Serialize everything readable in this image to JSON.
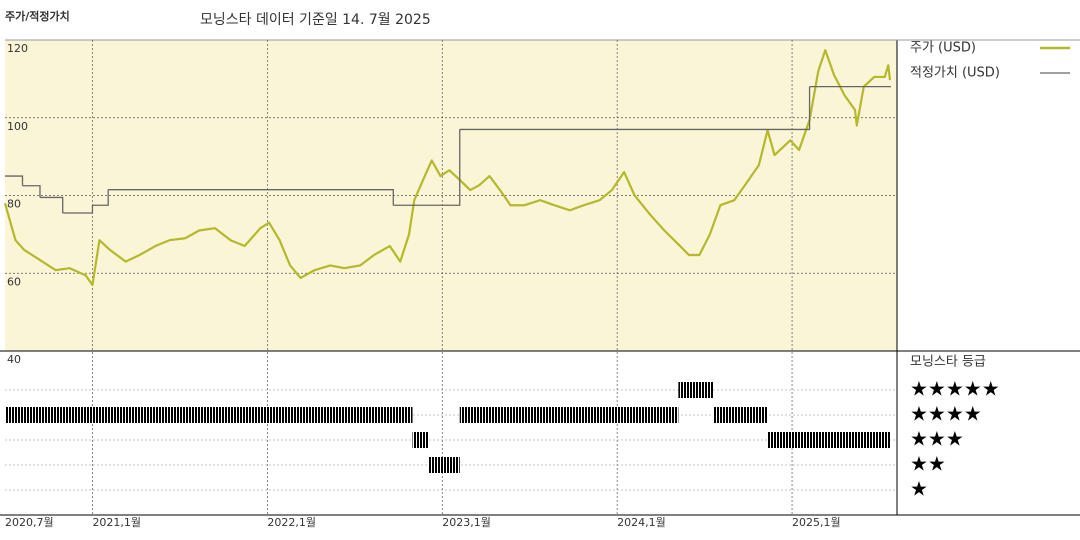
{
  "chart_data": {
    "type": "line",
    "title": "주가/적정가치",
    "subtitle": "모닝스타 데이터 기준일 14. 7월 2025",
    "xlim": [
      2020.5,
      2025.6
    ],
    "xticks": [
      {
        "value": 2020.5,
        "label": "2020,7월"
      },
      {
        "value": 2021,
        "label": "2021,1월"
      },
      {
        "value": 2022,
        "label": "2022,1월"
      },
      {
        "value": 2023,
        "label": "2023,1월"
      },
      {
        "value": 2024,
        "label": "2024,1월"
      },
      {
        "value": 2025,
        "label": "2025,1월"
      }
    ],
    "ylim": [
      40,
      120
    ],
    "yticks": [
      40,
      60,
      80,
      100,
      120
    ],
    "grid": true,
    "series": [
      {
        "name": "주가 (USD)",
        "color": "#b5b82a",
        "x": [
          2020.5,
          2020.56,
          2020.61,
          2020.7,
          2020.79,
          2020.87,
          2020.96,
          2021.0,
          2021.04,
          2021.1,
          2021.19,
          2021.27,
          2021.36,
          2021.44,
          2021.53,
          2021.61,
          2021.7,
          2021.79,
          2021.87,
          2021.96,
          2022.01,
          2022.07,
          2022.13,
          2022.19,
          2022.27,
          2022.36,
          2022.44,
          2022.53,
          2022.61,
          2022.7,
          2022.76,
          2022.81,
          2022.84,
          2022.9,
          2022.94,
          2022.99,
          2023.04,
          2023.1,
          2023.16,
          2023.21,
          2023.27,
          2023.33,
          2023.39,
          2023.47,
          2023.56,
          2023.64,
          2023.73,
          2023.81,
          2023.9,
          2023.97,
          2024.04,
          2024.1,
          2024.19,
          2024.27,
          2024.36,
          2024.41,
          2024.47,
          2024.53,
          2024.59,
          2024.67,
          2024.73,
          2024.81,
          2024.86,
          2024.9,
          2024.99,
          2025.04,
          2025.1,
          2025.15,
          2025.19,
          2025.24,
          2025.3,
          2025.36,
          2025.37,
          2025.41,
          2025.47,
          2025.53,
          2025.55,
          2025.56
        ],
        "values": [
          78,
          68.5,
          66,
          63.4,
          60.8,
          61.3,
          59.5,
          57,
          68.5,
          66,
          63,
          64.7,
          67,
          68.5,
          69,
          71,
          71.6,
          68.5,
          67,
          71.6,
          73,
          68.5,
          62,
          58.8,
          60.8,
          62,
          61.3,
          62,
          64.7,
          67,
          63,
          70,
          78.8,
          85,
          89,
          85,
          86.5,
          84,
          81.4,
          82.6,
          85,
          81.4,
          77.5,
          77.5,
          78.8,
          77.5,
          76.2,
          77.5,
          78.8,
          81.4,
          86,
          80,
          75,
          71,
          67,
          64.7,
          64.7,
          70,
          77.5,
          78.8,
          82.6,
          87.8,
          96.8,
          90.4,
          94.2,
          91.7,
          99.4,
          112,
          117.4,
          111,
          105.8,
          102,
          98,
          108,
          110.5,
          110.5,
          113.5,
          109.7
        ]
      },
      {
        "name": "적정가치 (USD)",
        "color": "#666666",
        "step": "post",
        "x": [
          2020.5,
          2020.6,
          2020.7,
          2020.83,
          2021.0,
          2021.09,
          2022.72,
          2023.1,
          2025.1,
          2025.56
        ],
        "values": [
          85,
          82.5,
          79.5,
          75.5,
          77.5,
          81.5,
          77.5,
          97,
          108,
          108
        ]
      }
    ],
    "rating": {
      "title": "모닝스타 등급",
      "labels": [
        "★★★★★",
        "★★★★",
        "★★★",
        "★★",
        "★"
      ],
      "levels": [
        5,
        4,
        3,
        2,
        1
      ],
      "color": "#333333",
      "five_star_color": "#4e8c73",
      "periods": [
        {
          "start": 2020.5,
          "end": 2022.83,
          "stars": 4
        },
        {
          "start": 2022.83,
          "end": 2022.92,
          "stars": 3
        },
        {
          "start": 2022.92,
          "end": 2023.1,
          "stars": 2
        },
        {
          "start": 2023.1,
          "end": 2024.35,
          "stars": 4
        },
        {
          "start": 2024.35,
          "end": 2024.55,
          "stars": 5
        },
        {
          "start": 2024.55,
          "end": 2024.86,
          "stars": 4
        },
        {
          "start": 2024.86,
          "end": 2025.56,
          "stars": 3
        }
      ]
    }
  }
}
